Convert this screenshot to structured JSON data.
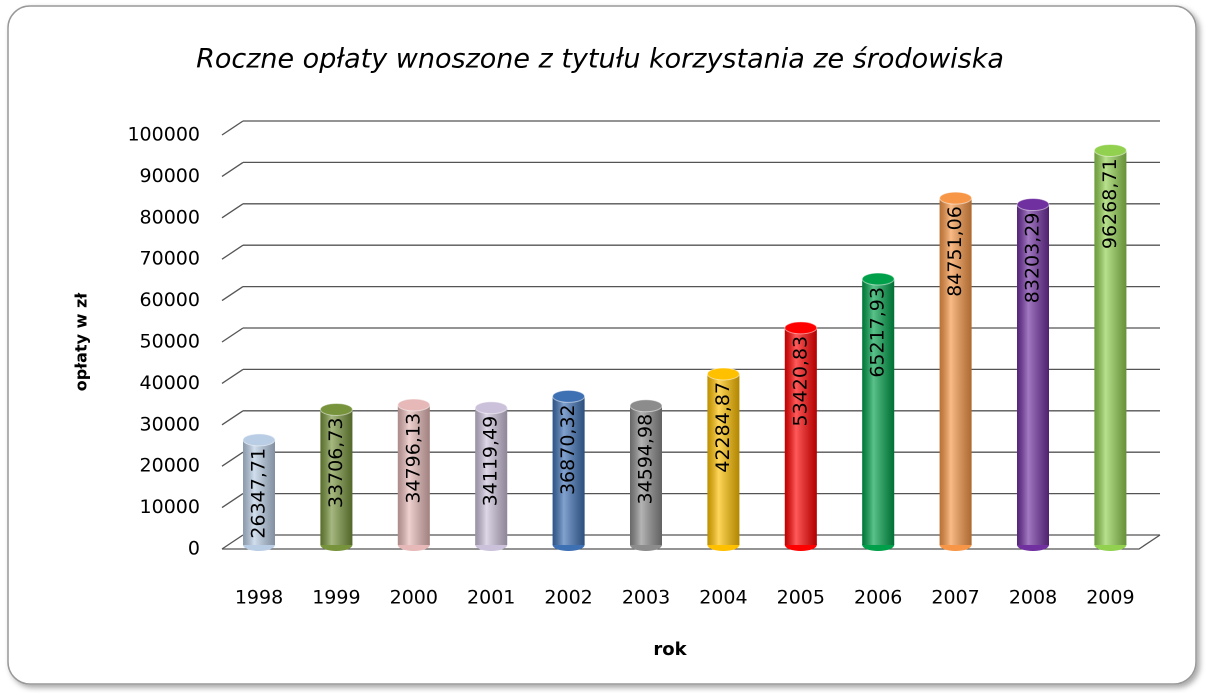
{
  "chart_data": {
    "type": "bar",
    "title": "Roczne opłaty wnoszone z tytułu korzystania ze środowiska",
    "x_label": "rok",
    "y_label": "opłaty w zł",
    "categories": [
      "1998",
      "1999",
      "2000",
      "2001",
      "2002",
      "2003",
      "2004",
      "2005",
      "2006",
      "2007",
      "2008",
      "2009"
    ],
    "values": [
      26347.71,
      33706.73,
      34796.13,
      34119.49,
      36870.32,
      34594.98,
      42284.87,
      53420.83,
      65217.93,
      84751.06,
      83203.29,
      96268.71
    ],
    "value_labels": [
      "26347,71",
      "33706,73",
      "34796,13",
      "34119,49",
      "36870,32",
      "34594,98",
      "42284,87",
      "53420,83",
      "65217,93",
      "84751,06",
      "83203,29",
      "96268,71"
    ],
    "colors": [
      "#b9cde5",
      "#77933c",
      "#e6b9b8",
      "#ccc1da",
      "#3e70b4",
      "#8c8c8c",
      "#ffc000",
      "#ff0000",
      "#00a04a",
      "#f79646",
      "#7030a0",
      "#92d050"
    ],
    "ylim": [
      0,
      100000
    ],
    "yticks": [
      0,
      10000,
      20000,
      30000,
      40000,
      50000,
      60000,
      70000,
      80000,
      90000,
      100000
    ],
    "grid": true
  }
}
